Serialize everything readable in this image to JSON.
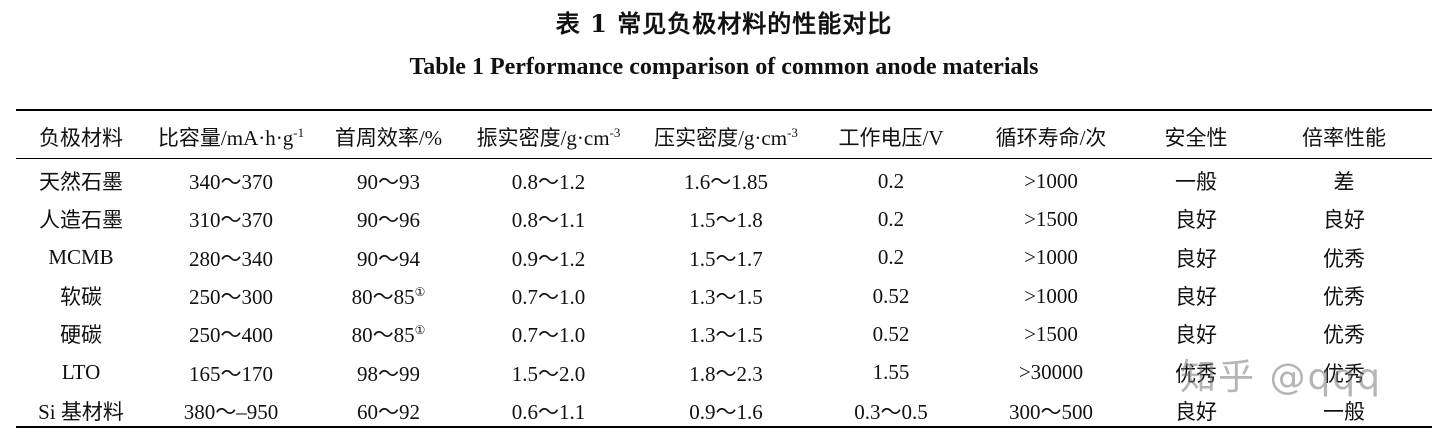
{
  "title": {
    "cn": "表 1 常见负极材料的性能对比",
    "en": "Table 1 Performance comparison of common anode materials"
  },
  "table": {
    "headers": [
      {
        "text": "负极材料"
      },
      {
        "text": "比容量/mA·h·g",
        "sup": "-1"
      },
      {
        "text": "首周效率/%"
      },
      {
        "text": "振实密度/g·cm",
        "sup": "-3"
      },
      {
        "text": "压实密度/g·cm",
        "sup": "-3"
      },
      {
        "text": "工作电压/V"
      },
      {
        "text": "循环寿命/次"
      },
      {
        "text": "安全性"
      },
      {
        "text": "倍率性能"
      }
    ],
    "rows": [
      {
        "material": "天然石墨",
        "capacity": "340～370",
        "efficiency": "90～93",
        "efficiency_note": "",
        "tap_density": "0.8～1.2",
        "compact_density": "1.6～1.85",
        "voltage": "0.2",
        "cycle_life": ">1000",
        "safety": "一般",
        "rate": "差"
      },
      {
        "material": "人造石墨",
        "capacity": "310～370",
        "efficiency": "90～96",
        "efficiency_note": "",
        "tap_density": "0.8～1.1",
        "compact_density": "1.5～1.8",
        "voltage": "0.2",
        "cycle_life": ">1500",
        "safety": "良好",
        "rate": "良好"
      },
      {
        "material": "MCMB",
        "capacity": "280～340",
        "efficiency": "90～94",
        "efficiency_note": "",
        "tap_density": "0.9～1.2",
        "compact_density": "1.5～1.7",
        "voltage": "0.2",
        "cycle_life": ">1000",
        "safety": "良好",
        "rate": "优秀"
      },
      {
        "material": "软碳",
        "capacity": "250～300",
        "efficiency": "80～85",
        "efficiency_note": "①",
        "tap_density": "0.7～1.0",
        "compact_density": "1.3～1.5",
        "voltage": "0.52",
        "cycle_life": ">1000",
        "safety": "良好",
        "rate": "优秀"
      },
      {
        "material": "硬碳",
        "capacity": "250～400",
        "efficiency": "80～85",
        "efficiency_note": "①",
        "tap_density": "0.7～1.0",
        "compact_density": "1.3～1.5",
        "voltage": "0.52",
        "cycle_life": ">1500",
        "safety": "良好",
        "rate": "优秀"
      },
      {
        "material": "LTO",
        "capacity": "165～170",
        "efficiency": "98～99",
        "efficiency_note": "",
        "tap_density": "1.5～2.0",
        "compact_density": "1.8～2.3",
        "voltage": "1.55",
        "cycle_life": ">30000",
        "safety": "优秀",
        "rate": "优秀"
      },
      {
        "material": "Si 基材料",
        "capacity": "380～–950",
        "efficiency": "60～92",
        "efficiency_note": "",
        "tap_density": "0.6～1.1",
        "compact_density": "0.9～1.6",
        "voltage": "0.3～0.5",
        "cycle_life": "300～500",
        "safety": "良好",
        "rate": "一般"
      }
    ]
  },
  "watermark": "知乎 @qqq"
}
